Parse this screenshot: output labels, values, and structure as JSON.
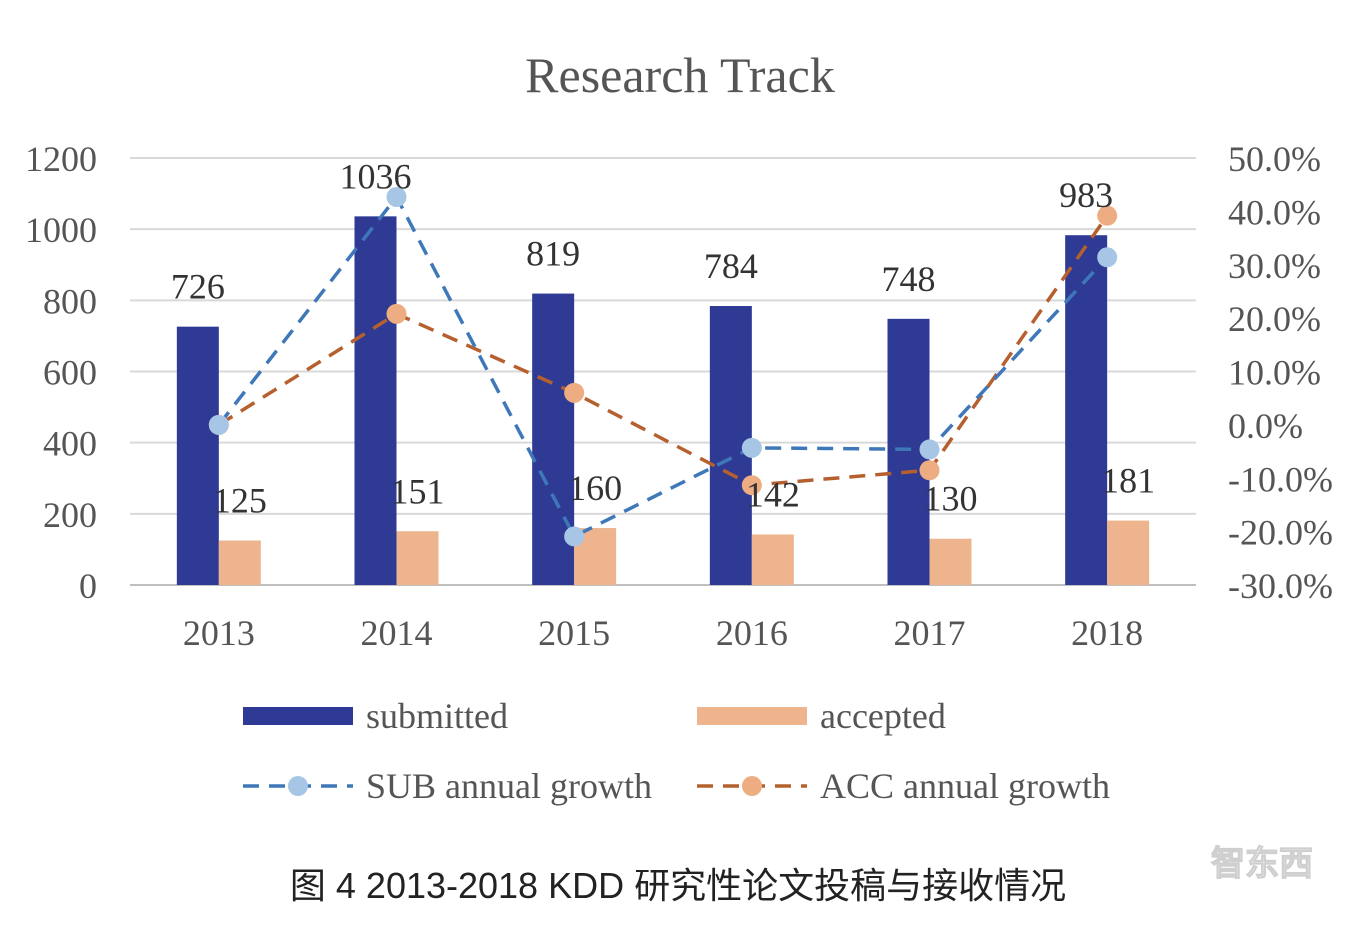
{
  "chart_data": {
    "type": "bar",
    "title": "Research Track",
    "categories": [
      "2013",
      "2014",
      "2015",
      "2016",
      "2017",
      "2018"
    ],
    "series": [
      {
        "name": "submitted",
        "kind": "bar",
        "axis": "left",
        "color": "#2E3A94",
        "values": [
          726,
          1036,
          819,
          784,
          748,
          983
        ]
      },
      {
        "name": "accepted",
        "kind": "bar",
        "axis": "left",
        "color": "#EEB48E",
        "values": [
          125,
          151,
          160,
          142,
          130,
          181
        ]
      },
      {
        "name": "SUB annual growth",
        "kind": "line",
        "style": "dashed",
        "axis": "right",
        "color": "#3F78B8",
        "marker_color": "#A7C6E6",
        "values": [
          0.0,
          42.7,
          -20.9,
          -4.3,
          -4.6,
          31.4
        ]
      },
      {
        "name": "ACC annual growth",
        "kind": "line",
        "style": "dashed",
        "axis": "right",
        "color": "#B5602E",
        "marker_color": "#EEAC82",
        "values": [
          0.0,
          20.8,
          6.0,
          -11.3,
          -8.5,
          39.2
        ]
      }
    ],
    "y_left": {
      "min": 0,
      "max": 1200,
      "ticks": [
        "0",
        "200",
        "400",
        "600",
        "800",
        "1000",
        "1200"
      ]
    },
    "y_right": {
      "min": -30,
      "max": 50,
      "ticks": [
        "-30.0%",
        "-20.0%",
        "-10.0%",
        "0.0%",
        "10.0%",
        "20.0%",
        "30.0%",
        "40.0%",
        "50.0%"
      ]
    },
    "grid": true,
    "legend": "bottom"
  },
  "caption": "图 4 2013-2018 KDD 研究性论文投稿与接收情况",
  "watermark": "智东西"
}
